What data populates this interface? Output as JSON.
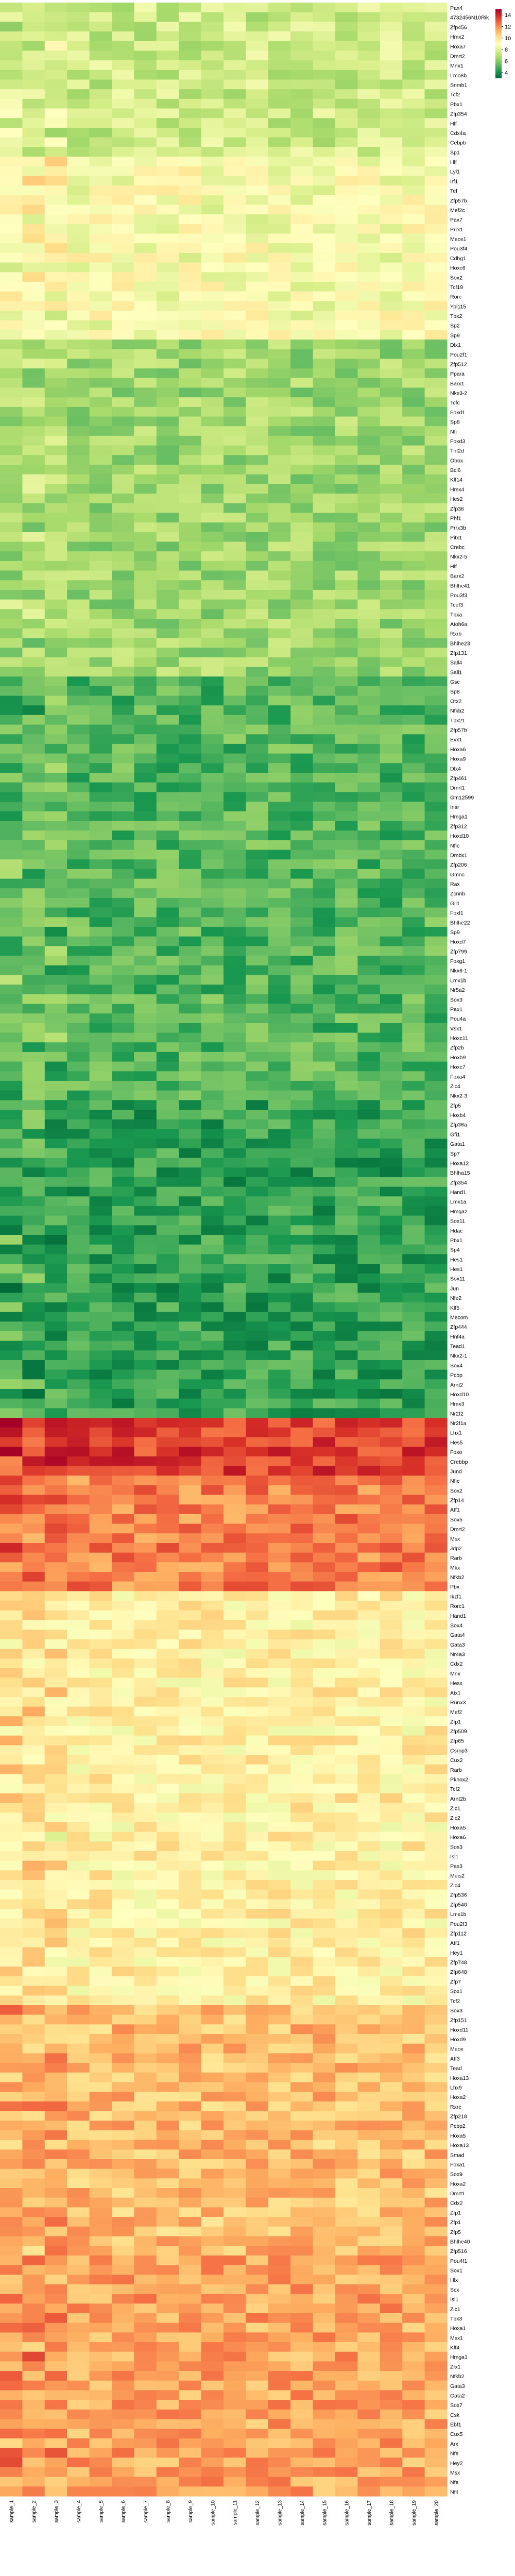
{
  "chart_data": {
    "type": "heatmap",
    "title": "",
    "colormap": "RdYlGn_r",
    "value_range": [
      3,
      15
    ],
    "colorbar_ticks": [
      4,
      6,
      8,
      10,
      12,
      14
    ],
    "columns": [
      "sample_1",
      "sample_2",
      "sample_3",
      "sample_4",
      "sample_5",
      "sample_6",
      "sample_7",
      "sample_8",
      "sample_9",
      "sample_10",
      "sample_11",
      "sample_12",
      "sample_13",
      "sample_14",
      "sample_15",
      "sample_16",
      "sample_17",
      "sample_18",
      "sample_19",
      "sample_20"
    ],
    "rows": [
      "Pax4",
      "4732456N10Rik",
      "Zfp456",
      "Hmx2",
      "Hoxa7",
      "Dmrt2",
      "Mnx1",
      "Lmo8b",
      "Snmb1",
      "Tcf2",
      "Pbx1",
      "Zfp354",
      "Hlf",
      "Cdx4a",
      "Cebpb",
      "Sp1",
      "Hlf",
      "Lyl1",
      "Irf1",
      "Tef",
      "Zfp57b",
      "Mef2c",
      "Pax7",
      "Prrx1",
      "Meox1",
      "Pou3f4",
      "Cdhg1",
      "Hoxc6",
      "Sox2",
      "Tcf19",
      "Rorc",
      "Ypl115",
      "Tbx2",
      "Sp2",
      "Sp9",
      "Dlx1",
      "Pou2f1",
      "Zfp512",
      "Ppara",
      "Barx1",
      "Nkx3-2",
      "Tcfc",
      "Foxd1",
      "Sp8",
      "Nfi",
      "Foxd3",
      "Tnf2d",
      "Obox",
      "Bcl6",
      "Klf14",
      "Hmx4",
      "Hes2",
      "Zfp36",
      "Phf1",
      "Prrx3b",
      "Pitx1",
      "Crebc",
      "Nkx2-5",
      "Hlf",
      "Barx2",
      "Bhlhe41",
      "Pou3f3",
      "Tcef3",
      "Tbxa",
      "Atoh6a",
      "Rxrb",
      "Bhlhe23",
      "Zfp131",
      "Sall4",
      "Sall1",
      "Gsc",
      "Sp8",
      "Otx2",
      "Nfkb2",
      "Tbx21",
      "Zfp57b",
      "Evx1",
      "Hoxa6",
      "Hoxa9",
      "Dlx4",
      "Zfp461",
      "Dmrt1",
      "Gm12599",
      "Insr",
      "Hmga1",
      "Zfp312",
      "Hoxd10",
      "Nfic",
      "Dmbx1",
      "Zfp206",
      "Gmnc",
      "Rax",
      "Zcnnb",
      "Gli1",
      "Foxl1",
      "Bhlhe22",
      "Sp9",
      "Hoxd7",
      "Zfp799",
      "Foxg1",
      "Nkx6-1",
      "Lmx1b",
      "Nr5a2",
      "Sox3",
      "Pax1",
      "Pou4a",
      "Vsx1",
      "Hoxc11",
      "Zfp2b",
      "Hoxb9",
      "Hoxc7",
      "Foxa4",
      "Zic4",
      "Nkx2-3",
      "Zfp5",
      "Hoxb4",
      "Zfp36a",
      "Gfi1",
      "Gata1",
      "Sp7",
      "Hoxa12",
      "Bhlha15",
      "Zfp354",
      "Hand1",
      "Lmx1a",
      "Hmga2",
      "Sox11",
      "Hdac",
      "Pbx1",
      "Sp4",
      "Hes1",
      "Hes1",
      "Sox11",
      "Jun",
      "Nfe2",
      "Klf5",
      "Mecom",
      "Zfp444",
      "Hnf4a",
      "Tead1",
      "Nkx2-1",
      "Sox4",
      "Pcbp",
      "Arnt2",
      "Hoxd10",
      "Hmx3",
      "Nr2f2",
      "Nr2f1a",
      "Lhx1",
      "Hes5",
      "Foxo",
      "Crebbp",
      "Jund",
      "Nfic",
      "Sox2",
      "Zfp14",
      "Atf1",
      "Sox5",
      "Dmrt2",
      "Msx",
      "Jdp2",
      "Rarb",
      "Mkx",
      "Nfkb2",
      "Pbx",
      "Ikzf1",
      "Rorc1",
      "Hand1",
      "Sox4",
      "Gata4",
      "Gata3",
      "Nr4a3",
      "Cdx2",
      "Mnx",
      "Hesx",
      "Alx1",
      "Runx3",
      "Mef2",
      "Zfp1",
      "Zfp509",
      "Zfp65",
      "Csrnp3",
      "Cux2",
      "Rarb",
      "Pknox2",
      "Tcf2",
      "Arnt2b",
      "Zic1",
      "Zic2",
      "Hoxa5",
      "Hoxa6",
      "Sox3",
      "Isl1",
      "Pax3",
      "Meis2",
      "Zic4",
      "Zfp536",
      "Zfp540",
      "Lmx1b",
      "Pou2f3",
      "Zfp112",
      "Atf1",
      "Hey1",
      "Zfp748",
      "Zfp648",
      "Zfp7",
      "Sox1",
      "Tcf2",
      "Sox3",
      "Zfp151",
      "Hoxd11",
      "Hoxd9",
      "Meox",
      "Atf3",
      "Tead",
      "Hoxa13",
      "Lhx9",
      "Hoxa2",
      "Rxrc",
      "Zfp218",
      "Pcbp2",
      "Hoxa5",
      "Hoxa13",
      "Smad",
      "Foxa1",
      "Sox9",
      "Hoxa2",
      "Dmrt1",
      "Cdx2",
      "Zfp1",
      "Zfp1",
      "Zfp5",
      "Bhlhe40",
      "Zfp516",
      "Pou4f1",
      "Sox1",
      "Hlx",
      "Scx",
      "Isl1",
      "Zic1",
      "Tbx3",
      "Hoxa1",
      "Msx1",
      "Klf4",
      "Hmga1",
      "Zfx1",
      "Nfkb2",
      "Gata3",
      "Gata2",
      "Sox7",
      "Csk",
      "Ebf1",
      "Cux5",
      "Arx",
      "Nfe",
      "Hey2",
      "Msx",
      "Nfe",
      "Nfil"
    ],
    "values_description": "log2 expression levels per gene across samples",
    "value_encoding": "cell color"
  }
}
